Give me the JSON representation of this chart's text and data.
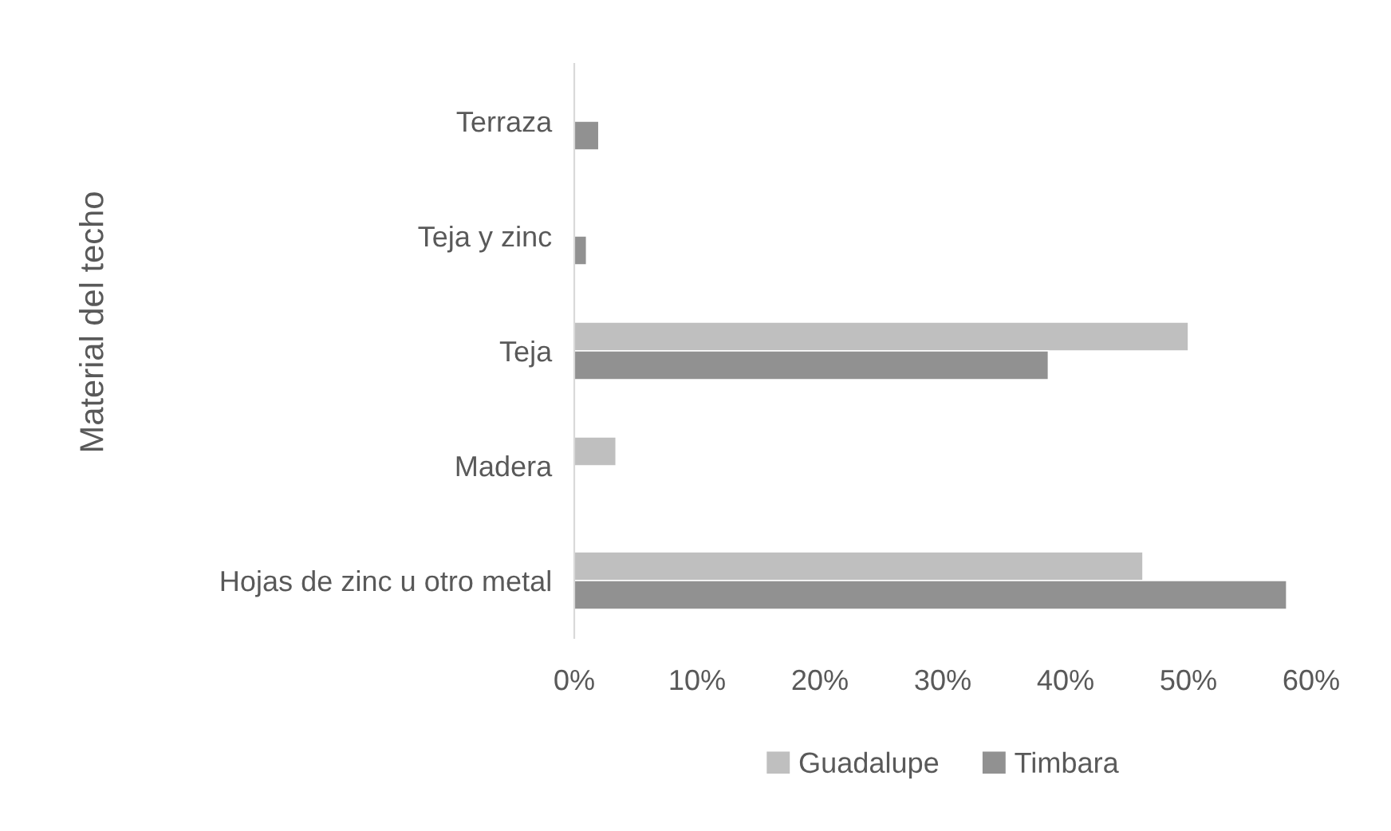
{
  "chart_data": {
    "type": "bar",
    "orientation": "horizontal",
    "ylabel": "Material del techo",
    "categories": [
      "Terraza",
      "Teja y zinc",
      "Teja",
      "Madera",
      "Hojas de zinc u otro metal"
    ],
    "series": [
      {
        "name": "Guadalupe",
        "color": "#bfbfbf",
        "values": [
          null,
          null,
          50.0,
          3.4,
          46.3
        ]
      },
      {
        "name": "Timbara",
        "color": "#919191",
        "values": [
          2.0,
          1.0,
          38.6,
          null,
          58.0
        ]
      }
    ],
    "xlim": [
      0,
      60
    ],
    "xticks": [
      {
        "value": 0,
        "label": "0%"
      },
      {
        "value": 10,
        "label": "10%"
      },
      {
        "value": 20,
        "label": "20%"
      },
      {
        "value": 30,
        "label": "30%"
      },
      {
        "value": 40,
        "label": "40%"
      },
      {
        "value": 50,
        "label": "50%"
      },
      {
        "value": 60,
        "label": "60%"
      }
    ],
    "grid": false,
    "legend": "bottom"
  }
}
